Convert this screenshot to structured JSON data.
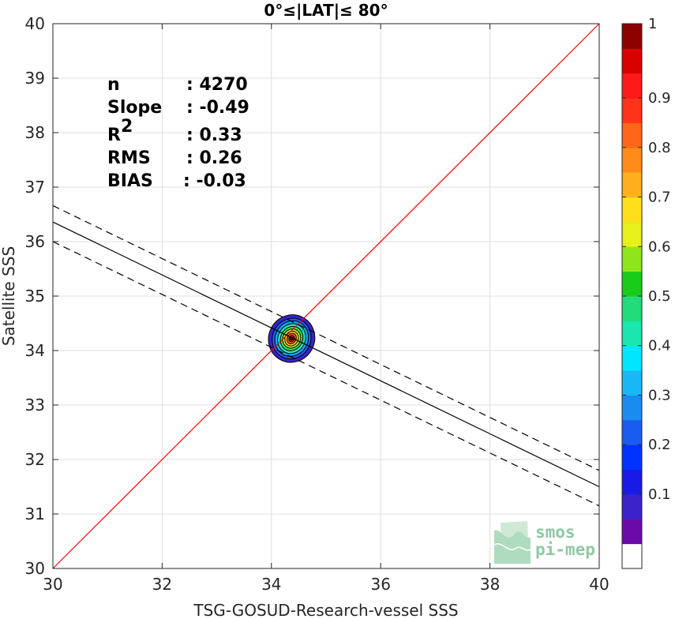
{
  "chart_data": {
    "type": "scatter",
    "title": "0°≤|LAT|≤ 80°",
    "xlabel": "TSG-GOSUD-Research-vessel SSS",
    "ylabel": "Satellite SSS",
    "xlim": [
      30,
      40
    ],
    "ylim": [
      30,
      40
    ],
    "xticks": [
      "30",
      "32",
      "34",
      "36",
      "38",
      "40"
    ],
    "yticks": [
      "30",
      "31",
      "32",
      "33",
      "34",
      "35",
      "36",
      "37",
      "38",
      "39",
      "40"
    ],
    "grid": true,
    "stats": [
      {
        "label": "n",
        "value": ": 4270"
      },
      {
        "label": "Slope",
        "value": ": -0.49"
      },
      {
        "label": "R",
        "sup": "2",
        "value": ": 0.33"
      },
      {
        "label": "RMS",
        "value": ": 0.26"
      },
      {
        "label": "BIAS",
        "value": ": -0.03"
      }
    ],
    "identity_line": {
      "x": [
        30,
        40
      ],
      "y": [
        30,
        40
      ],
      "color": "#ff0000"
    },
    "regression_line": {
      "x": [
        30,
        40
      ],
      "y": [
        36.36,
        31.5
      ],
      "color": "#000000"
    },
    "regression_band_upper": {
      "x": [
        30,
        40
      ],
      "y": [
        36.66,
        31.8
      ]
    },
    "regression_band_lower": {
      "x": [
        30,
        40
      ],
      "y": [
        36.0,
        31.15
      ]
    },
    "density_contours": {
      "center": [
        34.37,
        34.22
      ],
      "levels": [
        {
          "level": 0.05,
          "rx": 0.42,
          "ry": 0.44,
          "color": "#3b22c8"
        },
        {
          "level": 0.15,
          "rx": 0.35,
          "ry": 0.38,
          "color": "#1a5cf0"
        },
        {
          "level": 0.25,
          "rx": 0.3,
          "ry": 0.33,
          "color": "#19a8f0"
        },
        {
          "level": 0.4,
          "rx": 0.25,
          "ry": 0.28,
          "color": "#22e6c8"
        },
        {
          "level": 0.5,
          "rx": 0.2,
          "ry": 0.23,
          "color": "#3be04a"
        },
        {
          "level": 0.6,
          "rx": 0.16,
          "ry": 0.18,
          "color": "#c8f03b"
        },
        {
          "level": 0.7,
          "rx": 0.12,
          "ry": 0.14,
          "color": "#ffc81a"
        },
        {
          "level": 0.8,
          "rx": 0.08,
          "ry": 0.1,
          "color": "#ff6619"
        },
        {
          "level": 0.9,
          "rx": 0.05,
          "ry": 0.06,
          "color": "#e61919"
        },
        {
          "level": 1.0,
          "rx": 0.025,
          "ry": 0.03,
          "color": "#7a0000"
        }
      ]
    },
    "colorbar": {
      "ticks": [
        "0.1",
        "0.2",
        "0.3",
        "0.4",
        "0.5",
        "0.6",
        "0.7",
        "0.8",
        "0.9",
        "1"
      ],
      "bands": [
        "#ffffff",
        "#6c0aa8",
        "#3b22c8",
        "#1a1ae6",
        "#0033ff",
        "#1a5cf0",
        "#1a8cf0",
        "#19b8f5",
        "#00e6ff",
        "#1ae6b0",
        "#22dc7a",
        "#1acc1a",
        "#8ee61a",
        "#e6f01a",
        "#ffe01a",
        "#ffb01a",
        "#ff8c1a",
        "#ff6619",
        "#ff3319",
        "#ff1a1a",
        "#d90000",
        "#8c0000"
      ]
    },
    "logo_lines": [
      "smos",
      "pi-mep"
    ]
  }
}
